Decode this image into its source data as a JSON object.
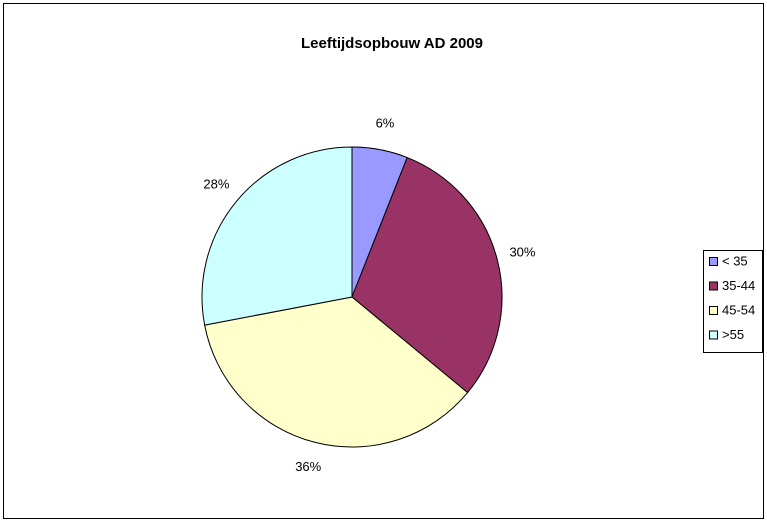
{
  "chart_data": {
    "type": "pie",
    "title": "Leeftijdsopbouw AD 2009",
    "categories": [
      "< 35",
      "35-44",
      "45-54",
      ">55"
    ],
    "values": [
      6,
      30,
      36,
      28
    ],
    "value_labels": [
      "6%",
      "30%",
      "36%",
      "28%"
    ],
    "colors": [
      "#9999ff",
      "#993366",
      "#ffffcc",
      "#ccffff"
    ],
    "legend": "right"
  }
}
